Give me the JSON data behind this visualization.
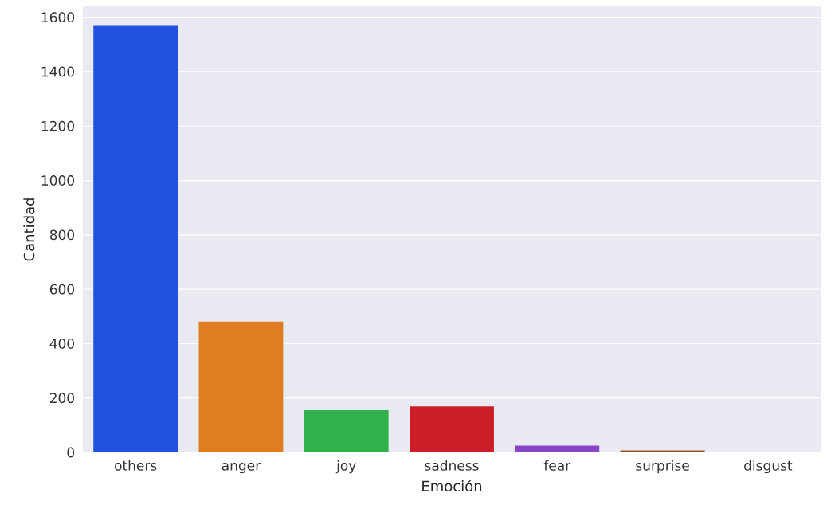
{
  "chart_data": {
    "type": "bar",
    "xlabel": "Emoción",
    "ylabel": "Cantidad",
    "categories": [
      "others",
      "anger",
      "joy",
      "sadness",
      "fear",
      "surprise",
      "disgust"
    ],
    "values": [
      1568,
      481,
      155,
      169,
      25,
      7,
      0
    ],
    "colors": [
      "#2251e0",
      "#df7d20",
      "#30b14b",
      "#cb1e28",
      "#8a44c8",
      "#9a5024",
      "#7a7a7a"
    ],
    "ylim": [
      0,
      1640
    ],
    "yticks": [
      0,
      200,
      400,
      600,
      800,
      1000,
      1200,
      1400,
      1600
    ],
    "grid": "y"
  }
}
